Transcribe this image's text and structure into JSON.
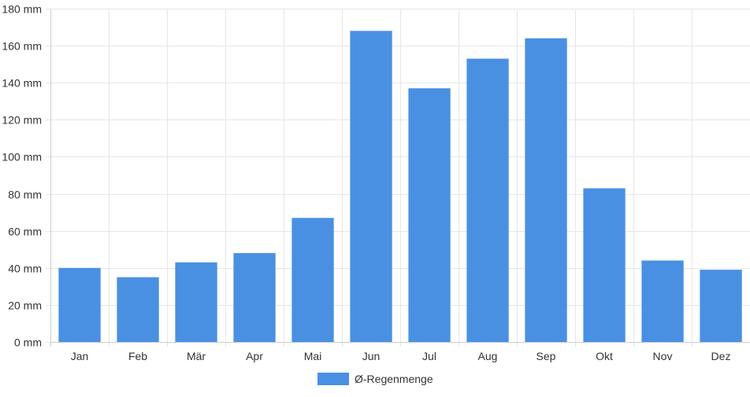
{
  "chart_data": {
    "type": "bar",
    "categories": [
      "Jan",
      "Feb",
      "Mär",
      "Apr",
      "Mai",
      "Jun",
      "Jul",
      "Aug",
      "Sep",
      "Okt",
      "Nov",
      "Dez"
    ],
    "series": [
      {
        "name": "Ø-Regenmenge",
        "values": [
          40,
          35,
          43,
          48,
          67,
          168,
          137,
          153,
          164,
          83,
          44,
          39
        ]
      }
    ],
    "yticks": [
      "0 mm",
      "20 mm",
      "40 mm",
      "60 mm",
      "80 mm",
      "100 mm",
      "120 mm",
      "140 mm",
      "160 mm",
      "180 mm"
    ],
    "ylim": [
      0,
      180
    ],
    "ytick_step": 20,
    "grid": true,
    "legend_position": "bottom",
    "colors": {
      "bar": "#4a90e2",
      "grid": "#e6e6e6",
      "axis": "#cccccc",
      "text": "#333333"
    }
  }
}
